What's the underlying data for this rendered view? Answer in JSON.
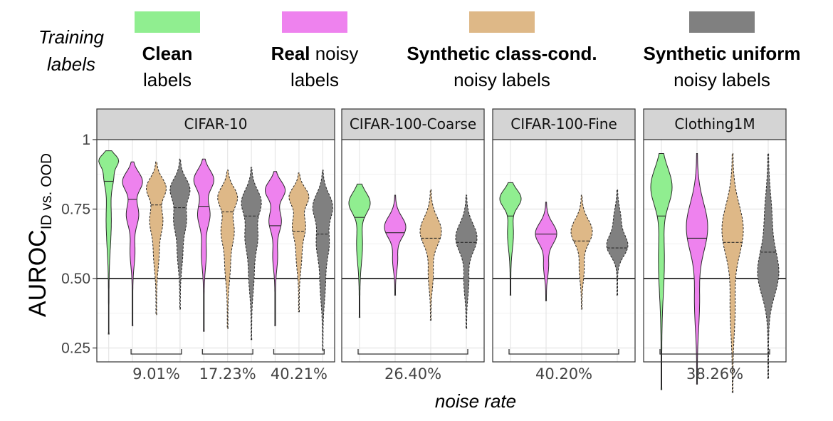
{
  "chart_data": {
    "type": "violin",
    "legend": {
      "title_line1": "Training",
      "title_line2": "labels",
      "entries": [
        {
          "key": "clean",
          "bold": "Clean",
          "rest": "",
          "line2": "labels",
          "color": "#90EE90",
          "dashed": false
        },
        {
          "key": "real",
          "bold": "Real",
          "rest": " noisy",
          "line2": "labels",
          "color": "#EE82EE",
          "dashed": false
        },
        {
          "key": "syn_cc",
          "bold": "Synthetic class-cond.",
          "rest": "",
          "line2": "noisy labels",
          "color": "#DEB887",
          "dashed": true
        },
        {
          "key": "syn_un",
          "bold": "Synthetic uniform",
          "rest": "",
          "line2": "noisy labels",
          "color": "#808080",
          "dashed": true
        }
      ]
    },
    "y_axis": {
      "label_main": "AUROC",
      "label_sub": "ID vs. OOD",
      "range": [
        0.2,
        1.0
      ],
      "ticks": [
        0.25,
        0.5,
        0.75,
        1.0
      ],
      "tick_labels": [
        "0.25",
        "0.50",
        "0.75",
        "1"
      ],
      "reference_line": 0.5
    },
    "x_axis_label": "noise rate",
    "panels": [
      {
        "title": "CIFAR-10",
        "noise_groups": [
          {
            "label": "9.01%",
            "from": 1,
            "to": 3
          },
          {
            "label": "17.23%",
            "from": 4,
            "to": 6
          },
          {
            "label": "40.21%",
            "from": 7,
            "to": 9
          }
        ],
        "violins": [
          {
            "pos": 0,
            "type": "clean",
            "min": 0.3,
            "max": 0.96,
            "median": 0.85,
            "shape": "clean"
          },
          {
            "pos": 1,
            "type": "real",
            "min": 0.33,
            "max": 0.92,
            "median": 0.785,
            "shape": "real"
          },
          {
            "pos": 2,
            "type": "syn_cc",
            "min": 0.37,
            "max": 0.92,
            "median": 0.765,
            "shape": "cc"
          },
          {
            "pos": 3,
            "type": "syn_un",
            "min": 0.39,
            "max": 0.93,
            "median": 0.755,
            "shape": "un"
          },
          {
            "pos": 4,
            "type": "real",
            "min": 0.31,
            "max": 0.93,
            "median": 0.76,
            "shape": "real"
          },
          {
            "pos": 5,
            "type": "syn_cc",
            "min": 0.32,
            "max": 0.89,
            "median": 0.74,
            "shape": "cc"
          },
          {
            "pos": 6,
            "type": "syn_un",
            "min": 0.28,
            "max": 0.9,
            "median": 0.725,
            "shape": "un"
          },
          {
            "pos": 7,
            "type": "real",
            "min": 0.33,
            "max": 0.885,
            "median": 0.69,
            "shape": "real"
          },
          {
            "pos": 8,
            "type": "syn_cc",
            "min": 0.38,
            "max": 0.88,
            "median": 0.67,
            "shape": "cc"
          },
          {
            "pos": 9,
            "type": "syn_un",
            "min": 0.24,
            "max": 0.89,
            "median": 0.66,
            "shape": "un"
          }
        ]
      },
      {
        "title": "CIFAR-100-Coarse",
        "noise_groups": [
          {
            "label": "26.40%",
            "from": 0,
            "to": 3
          }
        ],
        "violins": [
          {
            "pos": 0,
            "type": "clean",
            "min": 0.36,
            "max": 0.84,
            "median": 0.72,
            "shape": "top"
          },
          {
            "pos": 1,
            "type": "real",
            "min": 0.44,
            "max": 0.8,
            "median": 0.665,
            "shape": "mid"
          },
          {
            "pos": 2,
            "type": "syn_cc",
            "min": 0.35,
            "max": 0.82,
            "median": 0.645,
            "shape": "mid"
          },
          {
            "pos": 3,
            "type": "syn_un",
            "min": 0.32,
            "max": 0.8,
            "median": 0.63,
            "shape": "mid"
          }
        ]
      },
      {
        "title": "CIFAR-100-Fine",
        "noise_groups": [
          {
            "label": "40.20%",
            "from": 0,
            "to": 3
          }
        ],
        "violins": [
          {
            "pos": 0,
            "type": "clean",
            "min": 0.44,
            "max": 0.845,
            "median": 0.725,
            "shape": "top"
          },
          {
            "pos": 1,
            "type": "real",
            "min": 0.42,
            "max": 0.775,
            "median": 0.66,
            "shape": "mid"
          },
          {
            "pos": 2,
            "type": "syn_cc",
            "min": 0.39,
            "max": 0.8,
            "median": 0.635,
            "shape": "mid"
          },
          {
            "pos": 3,
            "type": "syn_un",
            "min": 0.44,
            "max": 0.82,
            "median": 0.61,
            "shape": "low"
          }
        ]
      },
      {
        "title": "Clothing1M",
        "noise_groups": [
          {
            "label": "38.26%",
            "from": 0,
            "to": 3
          }
        ],
        "violins": [
          {
            "pos": 0,
            "type": "clean",
            "min": 0.1,
            "max": 0.95,
            "median": 0.725,
            "shape": "top"
          },
          {
            "pos": 1,
            "type": "real",
            "min": 0.12,
            "max": 0.95,
            "median": 0.645,
            "shape": "mid"
          },
          {
            "pos": 2,
            "type": "syn_cc",
            "min": 0.09,
            "max": 0.95,
            "median": 0.63,
            "shape": "mid"
          },
          {
            "pos": 3,
            "type": "syn_un",
            "min": 0.14,
            "max": 0.95,
            "median": 0.595,
            "shape": "low"
          }
        ]
      }
    ]
  }
}
